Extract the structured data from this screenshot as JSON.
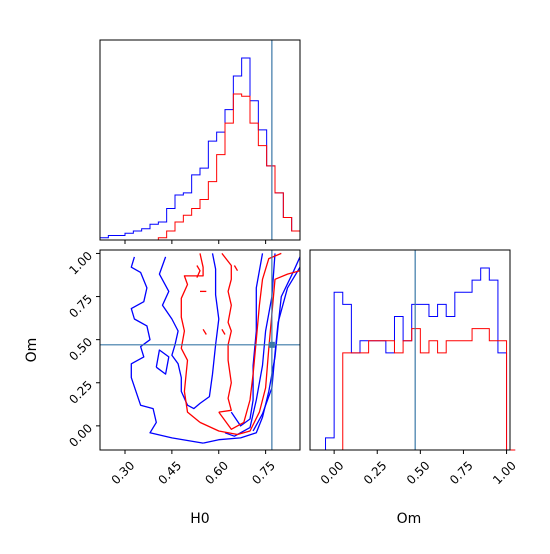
{
  "chart_data": [
    {
      "type": "histogram",
      "panel": "H0-marginal",
      "truth": 0.77,
      "xlim": [
        0.22,
        0.86
      ],
      "x_ticks": [
        0.3,
        0.45,
        0.6,
        0.75
      ],
      "x_tick_labels": [
        "",
        "",
        "",
        ""
      ],
      "bins": [
        0.22,
        0.2467,
        0.2733,
        0.3,
        0.3267,
        0.3533,
        0.38,
        0.4067,
        0.4333,
        0.46,
        0.4867,
        0.5133,
        0.54,
        0.5667,
        0.5933,
        0.62,
        0.6467,
        0.6733,
        0.7,
        0.7267,
        0.7533,
        0.78,
        0.8067,
        0.8333,
        0.86
      ],
      "series": [
        {
          "color": "#0000ff",
          "counts": [
            1,
            2,
            2,
            3,
            4,
            5,
            7,
            8,
            14,
            20,
            21,
            29,
            32,
            44,
            48,
            58,
            73,
            81,
            62,
            49,
            33,
            21,
            10,
            4
          ]
        },
        {
          "color": "#ff0000",
          "counts": [
            0,
            0,
            0,
            0,
            0,
            0,
            0,
            1,
            4,
            8,
            11,
            14,
            18,
            26,
            38,
            52,
            65,
            64,
            52,
            42,
            33,
            21,
            10,
            4
          ]
        }
      ]
    },
    {
      "type": "contour",
      "panel": "H0-Om-joint",
      "xlabel": "H0",
      "ylabel": "Om",
      "xlim": [
        0.22,
        0.86
      ],
      "ylim": [
        -0.14,
        1.02
      ],
      "x_ticks": [
        0.3,
        0.45,
        0.6,
        0.75
      ],
      "x_tick_labels": [
        "0.30",
        "0.45",
        "0.60",
        "0.75"
      ],
      "y_ticks": [
        0.0,
        0.25,
        0.5,
        0.75,
        1.0
      ],
      "y_tick_labels": [
        "0.00",
        "0.25",
        "0.50",
        "0.75",
        "1.00"
      ],
      "truth": [
        0.77,
        0.47
      ],
      "series": [
        {
          "color": "#0000ff",
          "contours": [
            [
              [
                0.55,
                -0.1
              ],
              [
                0.6,
                -0.08
              ],
              [
                0.67,
                -0.07
              ],
              [
                0.72,
                -0.04
              ],
              [
                0.74,
                0.05
              ],
              [
                0.76,
                0.2
              ],
              [
                0.78,
                0.4
              ],
              [
                0.79,
                0.58
              ],
              [
                0.8,
                0.75
              ],
              [
                0.84,
                0.9
              ],
              [
                0.86,
                0.98
              ]
            ],
            [
              [
                0.71,
                -0.03
              ],
              [
                0.74,
                0.07
              ],
              [
                0.77,
                0.22
              ],
              [
                0.78,
                0.42
              ],
              [
                0.79,
                0.6
              ],
              [
                0.82,
                0.8
              ],
              [
                0.86,
                0.92
              ]
            ],
            [
              [
                0.62,
                -0.04
              ],
              [
                0.65,
                -0.06
              ],
              [
                0.7,
                -0.01
              ],
              [
                0.72,
                0.15
              ],
              [
                0.74,
                0.35
              ],
              [
                0.75,
                0.55
              ],
              [
                0.77,
                0.75
              ],
              [
                0.78,
                1.0
              ]
            ],
            [
              [
                0.64,
                0.08
              ],
              [
                0.67,
                0.0
              ],
              [
                0.7,
                0.04
              ],
              [
                0.71,
                0.15
              ],
              [
                0.71,
                0.35
              ],
              [
                0.72,
                0.55
              ],
              [
                0.72,
                0.8
              ],
              [
                0.74,
                1.0
              ]
            ],
            [
              [
                0.33,
                0.98
              ],
              [
                0.32,
                0.92
              ],
              [
                0.35,
                0.89
              ],
              [
                0.37,
                0.8
              ],
              [
                0.36,
                0.72
              ],
              [
                0.32,
                0.68
              ],
              [
                0.33,
                0.62
              ],
              [
                0.37,
                0.58
              ],
              [
                0.38,
                0.5
              ],
              [
                0.35,
                0.46
              ],
              [
                0.36,
                0.4
              ],
              [
                0.32,
                0.36
              ],
              [
                0.32,
                0.28
              ],
              [
                0.35,
                0.12
              ],
              [
                0.39,
                0.1
              ],
              [
                0.4,
                0.02
              ],
              [
                0.38,
                -0.04
              ],
              [
                0.45,
                -0.07
              ],
              [
                0.55,
                -0.1
              ]
            ],
            [
              [
                0.43,
                0.98
              ],
              [
                0.41,
                0.88
              ],
              [
                0.44,
                0.78
              ],
              [
                0.42,
                0.7
              ],
              [
                0.45,
                0.62
              ],
              [
                0.47,
                0.55
              ],
              [
                0.46,
                0.47
              ],
              [
                0.45,
                0.41
              ],
              [
                0.47,
                0.36
              ],
              [
                0.48,
                0.28
              ],
              [
                0.48,
                0.2
              ],
              [
                0.5,
                0.12
              ],
              [
                0.52,
                0.1
              ],
              [
                0.54,
                0.13
              ],
              [
                0.57,
                0.17
              ],
              [
                0.58,
                0.3
              ],
              [
                0.59,
                0.47
              ],
              [
                0.6,
                0.62
              ],
              [
                0.59,
                0.76
              ],
              [
                0.59,
                0.91
              ],
              [
                0.58,
                1.0
              ]
            ],
            [
              [
                0.4,
                0.34
              ],
              [
                0.43,
                0.3
              ],
              [
                0.44,
                0.4
              ],
              [
                0.41,
                0.44
              ],
              [
                0.4,
                0.34
              ]
            ]
          ]
        },
        {
          "color": "#ff0000",
          "contours": [
            [
              [
                0.54,
                0.02
              ],
              [
                0.6,
                -0.03
              ],
              [
                0.66,
                -0.05
              ],
              [
                0.7,
                -0.03
              ],
              [
                0.73,
                0.08
              ],
              [
                0.75,
                0.22
              ],
              [
                0.76,
                0.45
              ],
              [
                0.77,
                0.65
              ],
              [
                0.78,
                0.85
              ],
              [
                0.82,
                0.88
              ],
              [
                0.86,
                0.9
              ]
            ],
            [
              [
                0.6,
                0.08
              ],
              [
                0.64,
                -0.02
              ],
              [
                0.68,
                0.02
              ],
              [
                0.7,
                0.15
              ],
              [
                0.71,
                0.3
              ],
              [
                0.72,
                0.5
              ],
              [
                0.73,
                0.7
              ],
              [
                0.74,
                0.85
              ],
              [
                0.76,
                0.97
              ],
              [
                0.8,
                1.0
              ]
            ],
            [
              [
                0.54,
                0.02
              ],
              [
                0.5,
                0.08
              ],
              [
                0.49,
                0.2
              ],
              [
                0.5,
                0.38
              ],
              [
                0.48,
                0.45
              ],
              [
                0.49,
                0.55
              ],
              [
                0.48,
                0.63
              ],
              [
                0.48,
                0.74
              ],
              [
                0.5,
                0.82
              ],
              [
                0.49,
                0.87
              ],
              [
                0.55,
                0.87
              ],
              [
                0.55,
                0.92
              ],
              [
                0.54,
                1.0
              ]
            ],
            [
              [
                0.61,
                1.0
              ],
              [
                0.64,
                0.93
              ],
              [
                0.64,
                0.85
              ],
              [
                0.63,
                0.78
              ],
              [
                0.64,
                0.7
              ],
              [
                0.63,
                0.6
              ],
              [
                0.64,
                0.55
              ],
              [
                0.63,
                0.47
              ],
              [
                0.63,
                0.38
              ],
              [
                0.64,
                0.25
              ],
              [
                0.63,
                0.16
              ],
              [
                0.64,
                0.09
              ],
              [
                0.6,
                0.08
              ]
            ],
            [
              [
                0.53,
                0.93
              ],
              [
                0.54,
                0.9
              ],
              [
                0.53,
                0.86
              ]
            ],
            [
              [
                0.65,
                0.93
              ],
              [
                0.66,
                0.9
              ]
            ],
            [
              [
                0.54,
                0.78
              ],
              [
                0.56,
                0.78
              ]
            ],
            [
              [
                0.55,
                0.56
              ],
              [
                0.56,
                0.53
              ]
            ],
            [
              [
                0.61,
                0.56
              ],
              [
                0.62,
                0.53
              ]
            ]
          ]
        }
      ]
    },
    {
      "type": "histogram",
      "panel": "Om-marginal",
      "xlabel": "Om",
      "truth": 0.47,
      "xlim": [
        -0.14,
        1.02
      ],
      "x_ticks": [
        0.0,
        0.25,
        0.5,
        0.75,
        1.0
      ],
      "x_tick_labels": [
        "0.00",
        "0.25",
        "0.50",
        "0.75",
        "1.00"
      ],
      "bins": [
        -0.1,
        -0.05,
        0.0,
        0.05,
        0.1,
        0.15,
        0.2,
        0.25,
        0.3,
        0.35,
        0.4,
        0.45,
        0.5,
        0.55,
        0.6,
        0.65,
        0.7,
        0.75,
        0.8,
        0.85,
        0.9,
        0.95,
        1.0,
        1.05
      ],
      "series": [
        {
          "color": "#0000ff",
          "counts": [
            0,
            1,
            13,
            12,
            8,
            9,
            9,
            9,
            8,
            11,
            9,
            12,
            12,
            11,
            12,
            11,
            13,
            13,
            14,
            15,
            14,
            8,
            0
          ]
        },
        {
          "color": "#ff0000",
          "counts": [
            0,
            0,
            0,
            8,
            8,
            8,
            9,
            9,
            9,
            8,
            9,
            10,
            8,
            9,
            8,
            9,
            9,
            9,
            10,
            10,
            9,
            9,
            0
          ]
        }
      ]
    }
  ]
}
